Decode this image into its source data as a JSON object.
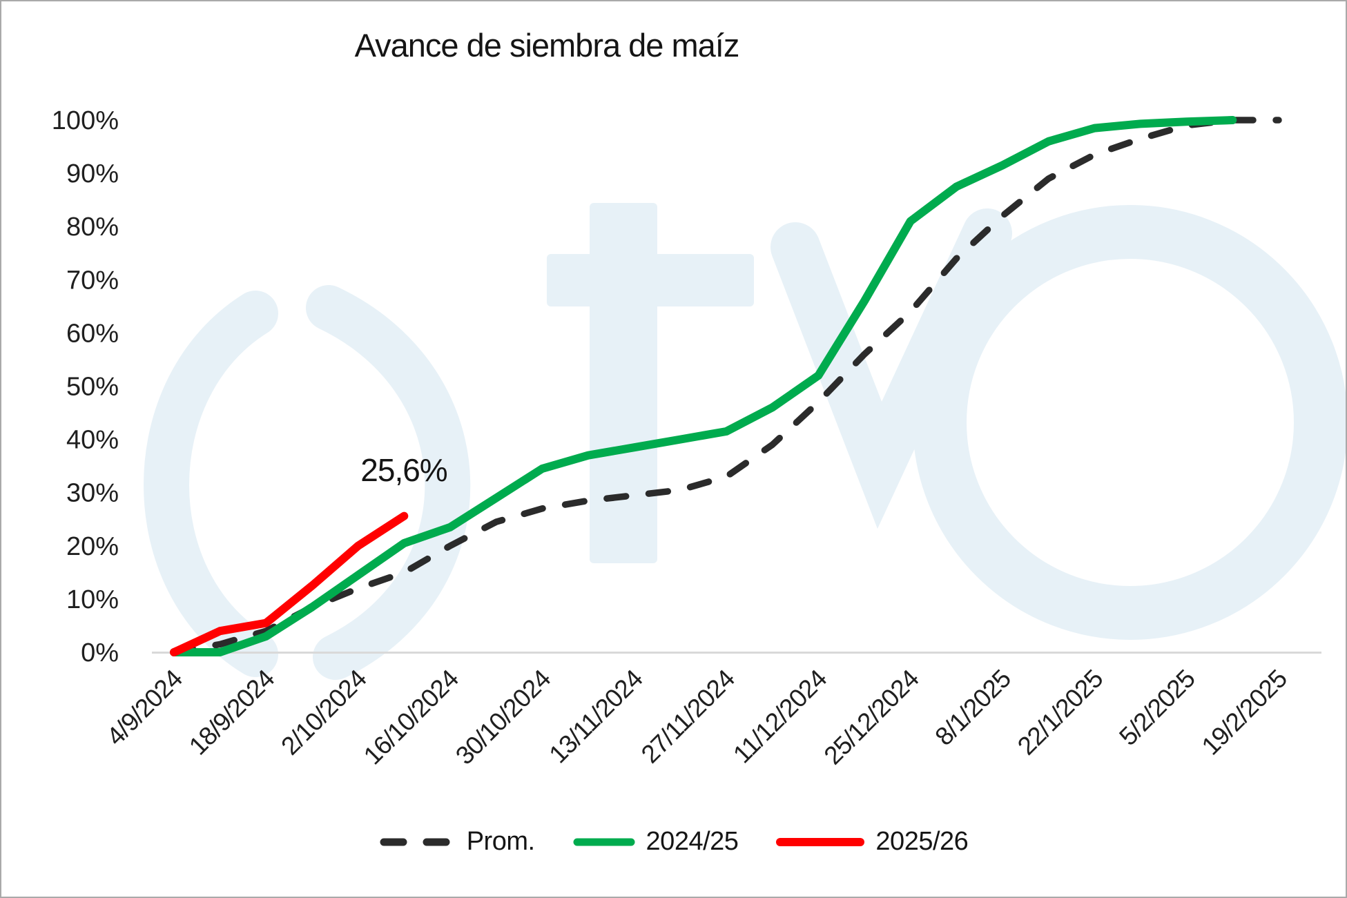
{
  "title": "Avance de siembra de maíz",
  "watermark": {
    "brand": "fyo",
    "color": "#e7f1f7"
  },
  "colors": {
    "prom": "#2b2b2b",
    "s2024_25": "#00ab4e",
    "s2025_26": "#ff0000",
    "axis_line": "#d9d9d9",
    "text": "#1f1f1f"
  },
  "chart_data": {
    "type": "line",
    "title": "Avance de siembra de maíz",
    "x": [
      "4/9/2024",
      "11/9/2024",
      "18/9/2024",
      "25/9/2024",
      "2/10/2024",
      "9/10/2024",
      "16/10/2024",
      "23/10/2024",
      "30/10/2024",
      "6/11/2024",
      "13/11/2024",
      "20/11/2024",
      "27/11/2024",
      "4/12/2024",
      "11/12/2024",
      "18/12/2024",
      "25/12/2024",
      "1/1/2025",
      "8/1/2025",
      "15/1/2025",
      "22/1/2025",
      "29/1/2025",
      "5/2/2025",
      "12/2/2025",
      "19/2/2025"
    ],
    "x_tick_every": 2,
    "x_axis_labels_shown": [
      "4/9/2024",
      "18/9/2024",
      "2/10/2024",
      "16/10/2024",
      "30/10/2024",
      "13/11/2024",
      "27/11/2024",
      "11/12/2024",
      "25/12/2024",
      "8/1/2025",
      "22/1/2025",
      "5/2/2025",
      "19/2/2025"
    ],
    "y_ticks": [
      "0%",
      "10%",
      "20%",
      "30%",
      "40%",
      "50%",
      "60%",
      "70%",
      "80%",
      "90%",
      "100%"
    ],
    "ylim": [
      0,
      100
    ],
    "grid": false,
    "legend_position": "bottom",
    "series": [
      {
        "name": "Prom.",
        "style": "dashed",
        "color": "#2b2b2b",
        "values": [
          0,
          1.5,
          4,
          8.5,
          12,
          15,
          20,
          24.5,
          27,
          28.5,
          29.5,
          30.5,
          33,
          39,
          47,
          56,
          64,
          74,
          82,
          89,
          93.5,
          96.5,
          99,
          100,
          100
        ]
      },
      {
        "name": "2024/25",
        "style": "solid",
        "color": "#00ab4e",
        "values": [
          0,
          0,
          3,
          8.5,
          14.5,
          20.5,
          23.5,
          29,
          34.5,
          37,
          38.5,
          40,
          41.5,
          46,
          52,
          66,
          81,
          87.5,
          91.5,
          96,
          98.5,
          99.3,
          99.7,
          100,
          null
        ]
      },
      {
        "name": "2025/26",
        "style": "solid",
        "color": "#ff0000",
        "values": [
          0,
          4,
          5.5,
          12.5,
          20,
          25.6,
          null,
          null,
          null,
          null,
          null,
          null,
          null,
          null,
          null,
          null,
          null,
          null,
          null,
          null,
          null,
          null,
          null,
          null,
          null
        ]
      }
    ],
    "annotation": {
      "text": "25,6%",
      "series": "2025/26",
      "x": "9/10/2024",
      "value": 25.6
    }
  }
}
